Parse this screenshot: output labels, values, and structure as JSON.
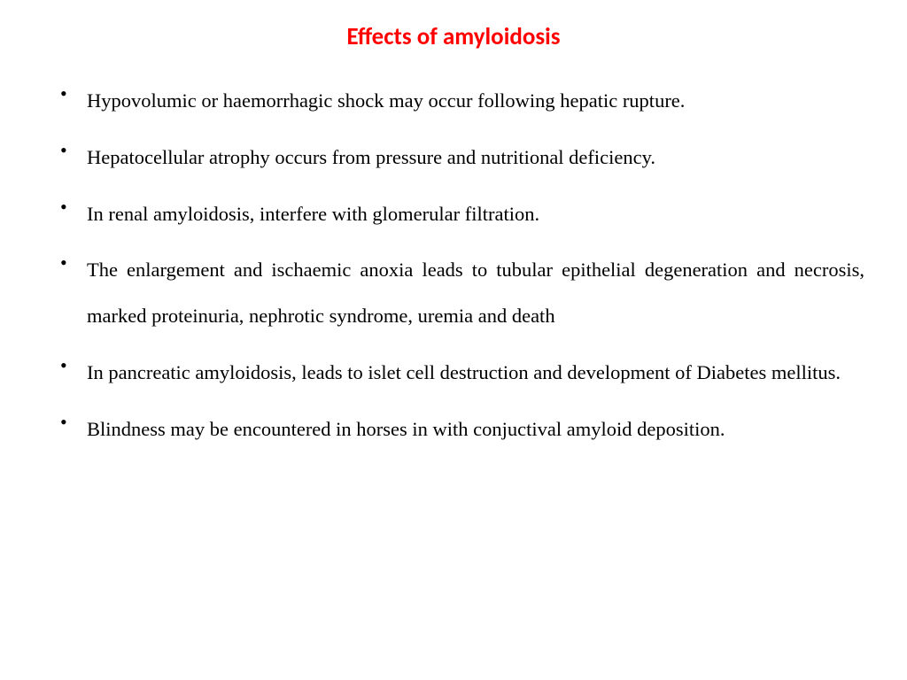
{
  "title": {
    "text": "Effects of amyloidosis",
    "color": "#ff0000",
    "fontsize": 27
  },
  "body": {
    "color": "#000000",
    "fontsize": 22.5,
    "line_height": 2.3
  },
  "bullets": [
    "Hypovolumic or haemorrhagic shock may occur following hepatic rupture.",
    "Hepatocellular atrophy occurs from pressure and nutritional deficiency.",
    "In renal amyloidosis, interfere with glomerular filtration.",
    "The enlargement and ischaemic anoxia leads to tubular epithelial degeneration and necrosis, marked proteinuria, nephrotic syndrome, uremia and death",
    "In pancreatic amyloidosis, leads to islet cell destruction and development of Diabetes mellitus.",
    "Blindness may be encountered in horses in with conjuctival amyloid deposition."
  ],
  "background_color": "#ffffff"
}
